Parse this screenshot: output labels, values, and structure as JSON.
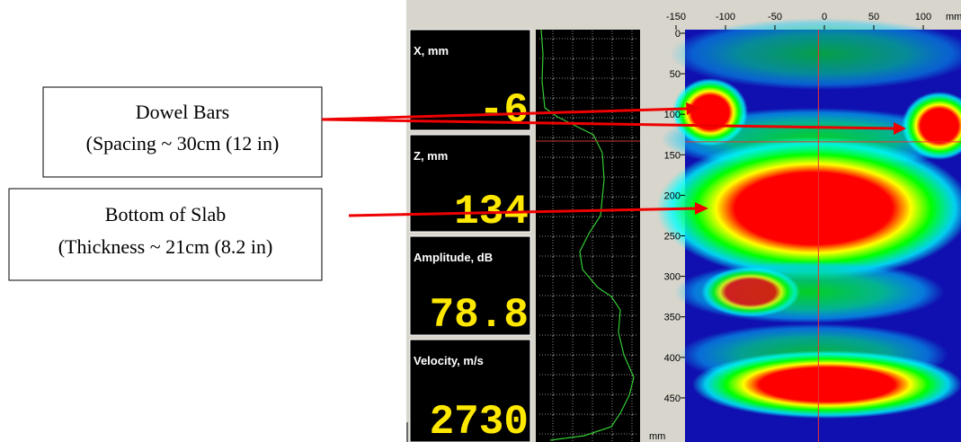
{
  "annotations": [
    {
      "title": "Dowel Bars",
      "detail": "(Spacing ~ 30cm (12 in)"
    },
    {
      "title": "Bottom of Slab",
      "detail": "(Thickness ~ 21cm (8.2 in)"
    }
  ],
  "readouts": [
    {
      "label": "X, mm",
      "value": -6
    },
    {
      "label": "Z, mm",
      "value": 134
    },
    {
      "label": "Amplitude, dB",
      "value": 78.8
    },
    {
      "label": "Velocity, m/s",
      "value": 2730
    }
  ],
  "image": {
    "xticks": [
      -150,
      -100,
      -50,
      0,
      50,
      100
    ],
    "x_unit": "mm",
    "yticks": [
      0,
      50,
      100,
      150,
      200,
      250,
      300,
      350,
      400,
      450
    ],
    "y_unit": "mm"
  }
}
